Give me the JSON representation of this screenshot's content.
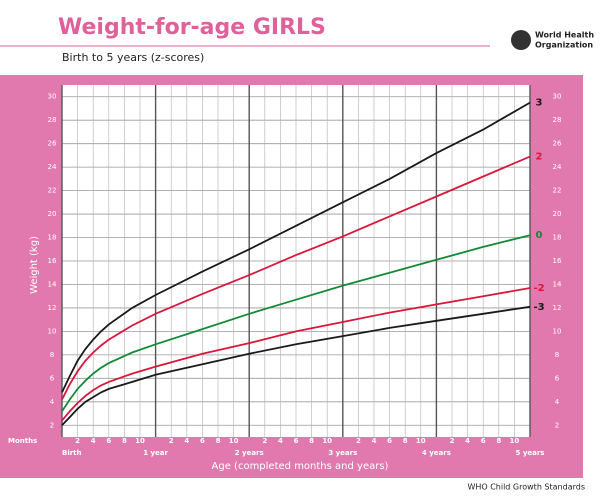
{
  "chart_data": {
    "type": "line",
    "title": "Weight-for-age GIRLS",
    "subtitle": "Birth to 5 years (z-scores)",
    "logo_text": [
      "World Health",
      "Organization"
    ],
    "footer": "WHO Child Growth Standards",
    "x_label": "Age (completed months and years)",
    "y_label": "Weight (kg)",
    "months_label": "Months",
    "x": [
      0,
      1,
      2,
      3,
      4,
      5,
      6,
      9,
      12,
      18,
      24,
      30,
      36,
      42,
      48,
      54,
      60
    ],
    "series": [
      {
        "name": "3",
        "color": "#1a1a1a",
        "values": [
          4.8,
          6.2,
          7.5,
          8.5,
          9.3,
          10.0,
          10.6,
          12.0,
          13.1,
          15.1,
          17.0,
          19.0,
          21.0,
          23.0,
          25.2,
          27.2,
          29.5
        ]
      },
      {
        "name": "2",
        "color": "#d9173b",
        "values": [
          4.2,
          5.5,
          6.6,
          7.5,
          8.2,
          8.8,
          9.3,
          10.5,
          11.5,
          13.2,
          14.8,
          16.5,
          18.1,
          19.8,
          21.5,
          23.2,
          24.9
        ]
      },
      {
        "name": "0",
        "color": "#138a36",
        "values": [
          3.2,
          4.2,
          5.1,
          5.8,
          6.4,
          6.9,
          7.3,
          8.2,
          8.9,
          10.2,
          11.5,
          12.7,
          13.9,
          15.0,
          16.1,
          17.2,
          18.2
        ]
      },
      {
        "name": "-2",
        "color": "#d9173b",
        "values": [
          2.4,
          3.2,
          3.9,
          4.5,
          5.0,
          5.4,
          5.7,
          6.4,
          7.0,
          8.1,
          9.0,
          10.0,
          10.8,
          11.6,
          12.3,
          13.0,
          13.7
        ]
      },
      {
        "name": "-3",
        "color": "#1a1a1a",
        "values": [
          2.0,
          2.7,
          3.4,
          4.0,
          4.4,
          4.8,
          5.1,
          5.7,
          6.3,
          7.2,
          8.1,
          8.9,
          9.6,
          10.3,
          10.9,
          11.5,
          12.1
        ]
      }
    ],
    "xlim": [
      0,
      60
    ],
    "ylim": [
      1,
      31
    ],
    "xticks": [
      2,
      4,
      6,
      8,
      10,
      {
        "value": 14,
        "label": "2"
      },
      {
        "value": 16,
        "label": "4"
      },
      {
        "value": 18,
        "label": "6"
      },
      {
        "value": 20,
        "label": "8"
      },
      {
        "value": 22,
        "label": "10"
      },
      {
        "value": 26,
        "label": "2"
      },
      {
        "value": 28,
        "label": "4"
      },
      {
        "value": 30,
        "label": "6"
      },
      {
        "value": 32,
        "label": "8"
      },
      {
        "value": 34,
        "label": "10"
      },
      {
        "value": 38,
        "label": "2"
      },
      {
        "value": 40,
        "label": "4"
      },
      {
        "value": 42,
        "label": "6"
      },
      {
        "value": 44,
        "label": "8"
      },
      {
        "value": 46,
        "label": "10"
      },
      {
        "value": 50,
        "label": "2"
      },
      {
        "value": 52,
        "label": "4"
      },
      {
        "value": 54,
        "label": "6"
      },
      {
        "value": 56,
        "label": "8"
      },
      {
        "value": 58,
        "label": "10"
      }
    ],
    "year_ticks": [
      {
        "value": 0,
        "label": "Birth"
      },
      {
        "value": 12,
        "label": "1 year"
      },
      {
        "value": 24,
        "label": "2 years"
      },
      {
        "value": 36,
        "label": "3 years"
      },
      {
        "value": 48,
        "label": "4 years"
      },
      {
        "value": 60,
        "label": "5 years"
      }
    ],
    "yticks": [
      2,
      4,
      6,
      8,
      10,
      12,
      14,
      16,
      18,
      20,
      22,
      24,
      26,
      28,
      30
    ],
    "grid": true
  }
}
